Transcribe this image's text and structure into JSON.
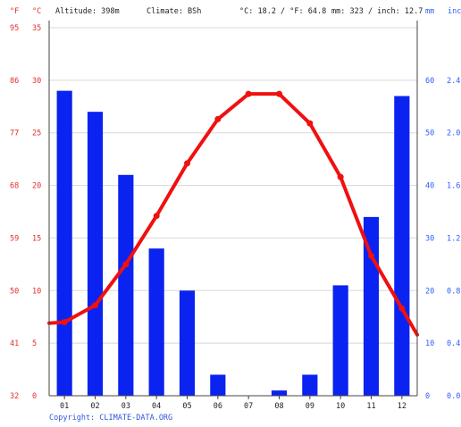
{
  "chart_data": {
    "type": "bar+line",
    "header": {
      "unit_f": "°F",
      "unit_c": "°C",
      "altitude": "Altitude: 398m",
      "climate": "Climate: BSh",
      "temp_summary": "°C: 18.2 / °F: 64.8",
      "precip_summary": "mm: 323 / inch: 12.7",
      "unit_mm": "mm",
      "unit_inch": "inch"
    },
    "categories": [
      "01",
      "02",
      "03",
      "04",
      "05",
      "06",
      "07",
      "08",
      "09",
      "10",
      "11",
      "12"
    ],
    "precipitation_mm": [
      58,
      54,
      42,
      28,
      20,
      4,
      0,
      1,
      4,
      21,
      34,
      57
    ],
    "temperature_c": [
      7.0,
      8.6,
      12.5,
      17.1,
      22.1,
      26.3,
      28.7,
      28.7,
      25.9,
      20.8,
      13.3,
      8.3
    ],
    "temp_axis_c": {
      "ylim": [
        0,
        35
      ],
      "ticks": [
        "0",
        "5",
        "10",
        "15",
        "20",
        "25",
        "30",
        "35"
      ]
    },
    "temp_axis_f": {
      "ticks": [
        "32",
        "41",
        "50",
        "59",
        "68",
        "77",
        "86",
        "95"
      ]
    },
    "precip_axis_mm": {
      "ylim": [
        0,
        60
      ],
      "ticks": [
        "0",
        "10",
        "20",
        "30",
        "40",
        "50",
        "60"
      ]
    },
    "precip_axis_inch": {
      "ticks": [
        "0.0",
        "0.4",
        "0.8",
        "1.2",
        "1.6",
        "2.0",
        "2.4"
      ]
    },
    "colors": {
      "bars": "#0a23f0",
      "line": "#f01010",
      "grid": "#d8d8d8"
    },
    "copyright": "Copyright: CLIMATE-DATA.ORG"
  }
}
